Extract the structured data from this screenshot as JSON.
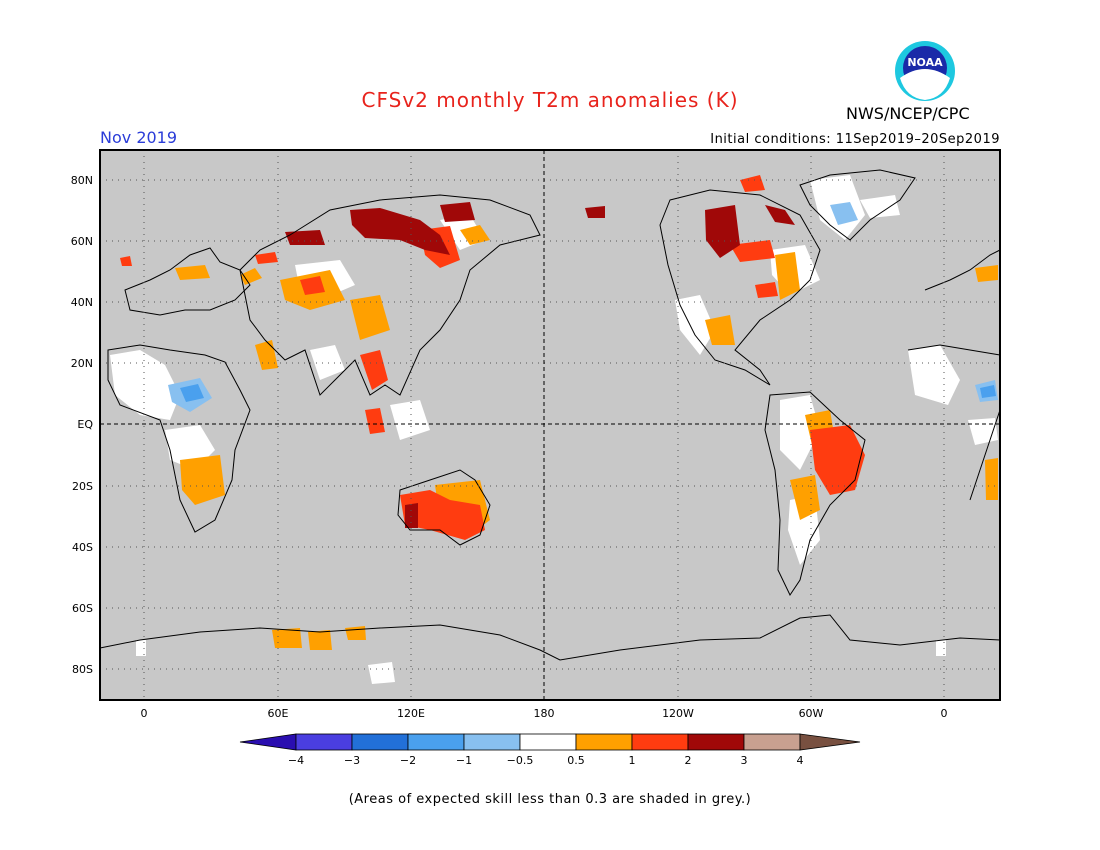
{
  "header": {
    "title": "CFSv2 monthly T2m anomalies (K)",
    "agency": "NWS/NCEP/CPC",
    "logo_text": "NOAA",
    "month": "Nov 2019",
    "initial_conditions": "Initial conditions: 11Sep2019–20Sep2019"
  },
  "axes": {
    "lat_labels": [
      "80N",
      "60N",
      "40N",
      "20N",
      "EQ",
      "20S",
      "40S",
      "60S",
      "80S"
    ],
    "lon_labels": [
      "0",
      "60E",
      "120E",
      "180",
      "120W",
      "60W",
      "0"
    ]
  },
  "colorbar": {
    "tick_labels": [
      "−4",
      "−3",
      "−2",
      "−1",
      "−0.5",
      "0.5",
      "1",
      "2",
      "3",
      "4"
    ],
    "colors": [
      "#2a0eb0",
      "#4a3ee0",
      "#2270d8",
      "#4aa0ee",
      "#88c0f0",
      "#ffffff",
      "#ffa000",
      "#ff3c10",
      "#a00808",
      "#c8a090",
      "#785040"
    ]
  },
  "colors": {
    "ocean_grey": "#c8c8c8",
    "warm1": "#ffa000",
    "warm2": "#ff3c10",
    "warm3": "#a00808",
    "cool1": "#88c0f0",
    "cool2": "#4aa0ee",
    "neutral": "#ffffff"
  },
  "footnote": "(Areas of expected skill less than 0.3 are shaded in grey.)"
}
